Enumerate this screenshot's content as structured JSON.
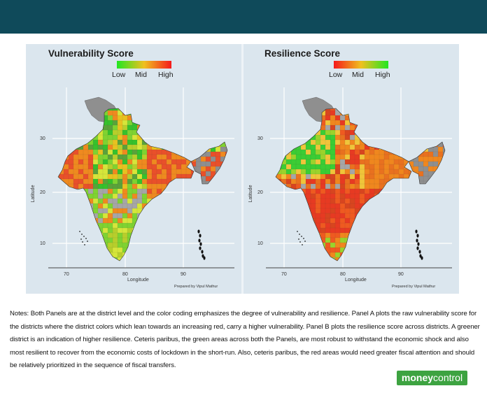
{
  "panels": [
    {
      "title": "Vulnerability Score",
      "legend": {
        "labels": [
          "Low",
          "Mid",
          "High"
        ],
        "gradient": [
          "#22e622",
          "#f0c020",
          "#f5191b"
        ]
      },
      "axes": {
        "x_ticks": [
          "70",
          "80",
          "90"
        ],
        "y_ticks": [
          "30",
          "20",
          "10"
        ],
        "xlabel": "Longitude",
        "ylabel": "Latitude"
      },
      "credit": "Prepared by Vipul Mathur",
      "palette": [
        "#d6e63a",
        "#7fd331",
        "#36c12c",
        "#e8c220",
        "#ef8a1f",
        "#e9502a",
        "#b7cf2b",
        "#a6a6a6",
        "#5aa23a"
      ]
    },
    {
      "title": "Resilience Score",
      "legend": {
        "labels": [
          "Low",
          "Mid",
          "High"
        ],
        "gradient": [
          "#f5191b",
          "#f0c020",
          "#22e622"
        ]
      },
      "axes": {
        "x_ticks": [
          "70",
          "80",
          "90"
        ],
        "y_ticks": [
          "30",
          "20",
          "10"
        ],
        "xlabel": "Longitude",
        "ylabel": "Latitude"
      },
      "credit": "Prepared by Vipul Mathur",
      "palette": [
        "#ef5a20",
        "#f0871e",
        "#e73a22",
        "#f0c53a",
        "#e9711f",
        "#9bd32c",
        "#3bcd34",
        "#a6a6a6",
        "#d8451f"
      ]
    }
  ],
  "notes": "Notes: Both Panels are at the district level and the color coding emphasizes the degree of vulnerability and resilience. Panel A plots the raw vulnerability score for the districts where the district colors which lean towards an increasing red, carry a higher vulnerability. Panel B plots the resilience score across districts. A greener district is an indication of higher resilience. Ceteris paribus, the green areas across both the Panels, are most robust to withstand the economic shock and also most resilient to recover from the economic costs of lockdown in the short-run. Also, ceteris paribus, the red areas would need greater fiscal attention and should be relatively prioritized in the sequence of fiscal transfers.",
  "brand": {
    "part1": "money",
    "part2": "control"
  },
  "colors": {
    "header": "#0f4a5a",
    "figure_bg": "#dbe6ee",
    "brand_green": "#3da341"
  }
}
